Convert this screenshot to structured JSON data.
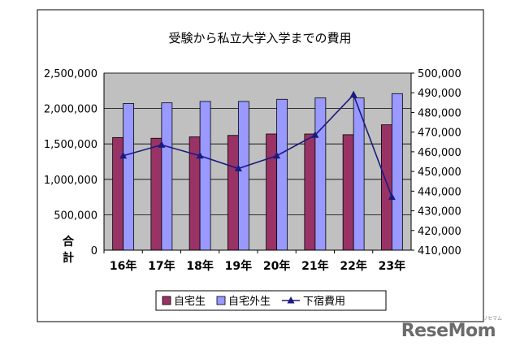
{
  "chart_data": {
    "type": "bar",
    "title": "受験から私立大学入学までの費用",
    "categories": [
      "16年",
      "17年",
      "18年",
      "19年",
      "20年",
      "21年",
      "22年",
      "23年"
    ],
    "left_axis": {
      "label": "合計",
      "ylim": [
        0,
        2500000
      ],
      "ticks": [
        "0",
        "500,000",
        "1,000,000",
        "1,500,000",
        "2,000,000",
        "2,500,000"
      ]
    },
    "right_axis": {
      "ylim": [
        410000,
        500000
      ],
      "ticks": [
        "410,000",
        "420,000",
        "430,000",
        "440,000",
        "450,000",
        "460,000",
        "470,000",
        "480,000",
        "490,000",
        "500,000"
      ]
    },
    "series": [
      {
        "name": "自宅生",
        "type": "bar",
        "axis": "left",
        "color": "#993366",
        "values": [
          1590000,
          1580000,
          1600000,
          1620000,
          1640000,
          1640000,
          1630000,
          1770000
        ]
      },
      {
        "name": "自宅外生",
        "type": "bar",
        "axis": "left",
        "color": "#9999ff",
        "values": [
          2070000,
          2080000,
          2100000,
          2100000,
          2130000,
          2150000,
          2150000,
          2210000
        ]
      },
      {
        "name": "下宿費用",
        "type": "line",
        "axis": "right",
        "color": "#1a1a80",
        "marker": "triangle",
        "values": [
          458000,
          463500,
          458000,
          451500,
          458000,
          468500,
          489000,
          437000
        ]
      }
    ],
    "grid": true,
    "legend_position": "bottom"
  },
  "watermark": {
    "brand": "ReseMom"
  },
  "colors": {
    "plot_background": "#c0c0c0",
    "outer_background": "#ffffff"
  }
}
